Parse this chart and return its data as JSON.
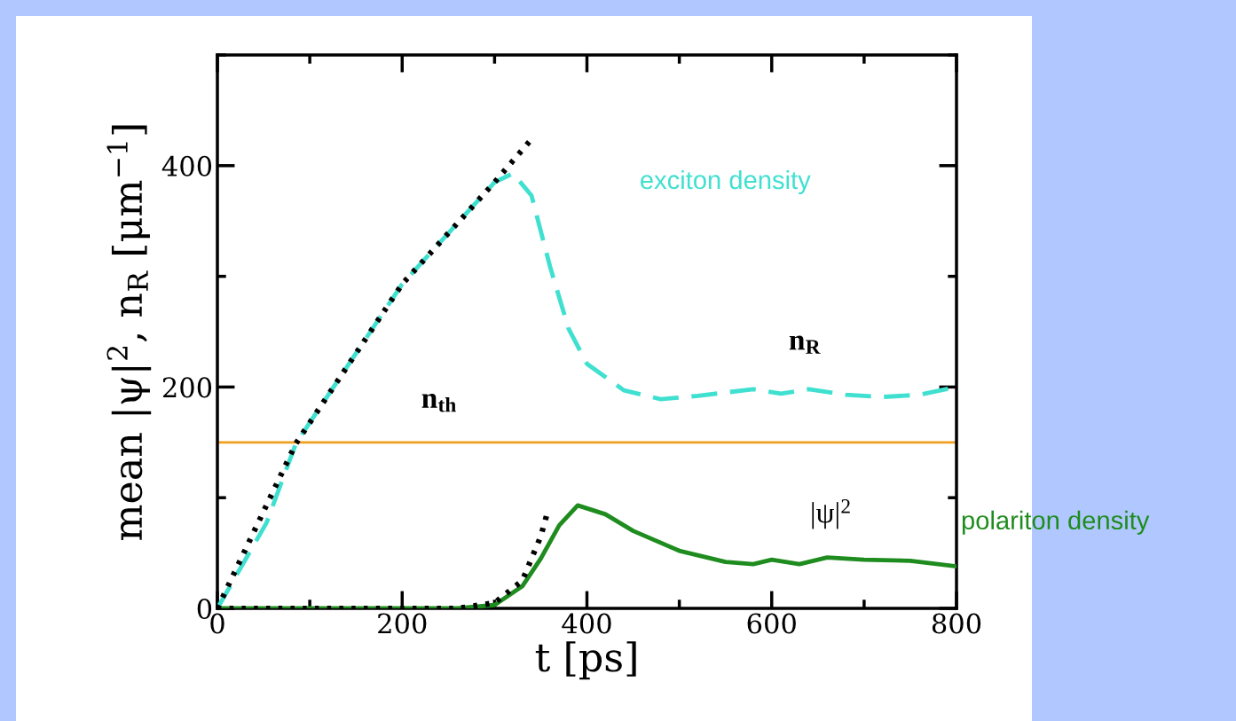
{
  "chart_data": {
    "type": "line",
    "xlabel": "t [ps]",
    "ylabel": "mean |ψ|$^{2}$, n$_{R}$ [μm$^{−1}$]",
    "xlim": [
      0,
      800
    ],
    "xticks": [
      0,
      200,
      400,
      600,
      800
    ],
    "ylim": [
      0,
      500
    ],
    "yticks": [
      0,
      200,
      400
    ],
    "grid": false,
    "marker": "none",
    "series": [
      {
        "name": "exciton density",
        "color": "#40e0d0",
        "line_style": "dashed",
        "x": [
          0,
          53,
          85,
          200,
          300,
          320,
          340,
          360,
          380,
          400,
          440,
          480,
          520,
          580,
          610,
          640,
          680,
          720,
          760,
          800
        ],
        "values": [
          0,
          77,
          149,
          293,
          385,
          393,
          373,
          309,
          253,
          221,
          197,
          189,
          192,
          198,
          194,
          198,
          193,
          191,
          193,
          200
        ]
      },
      {
        "color": "#000000",
        "line_style": "dotted",
        "x": [
          0,
          85,
          200,
          300,
          340
        ],
        "values": [
          0,
          149,
          293,
          385,
          424
        ]
      },
      {
        "name": "polariton density",
        "color": "#1e8c1e",
        "line_style": "solid",
        "x": [
          0,
          260,
          300,
          330,
          350,
          370,
          390,
          420,
          450,
          500,
          550,
          580,
          600,
          630,
          660,
          700,
          750,
          800
        ],
        "values": [
          0,
          0,
          3,
          20,
          45,
          75,
          93,
          85,
          70,
          52,
          42,
          40,
          44,
          40,
          46,
          44,
          43,
          38
        ]
      },
      {
        "color": "#000000",
        "line_style": "dotted",
        "x": [
          0,
          260,
          300,
          330,
          350,
          357
        ],
        "values": [
          0,
          0,
          5,
          25,
          65,
          86
        ]
      }
    ],
    "ref_lines": [
      {
        "axis": "y",
        "value": 150,
        "color": "#f0a020"
      }
    ],
    "annotations": [
      "n$_{R}$",
      "n$_{th}$",
      "|ψ|$^{2}$"
    ]
  }
}
